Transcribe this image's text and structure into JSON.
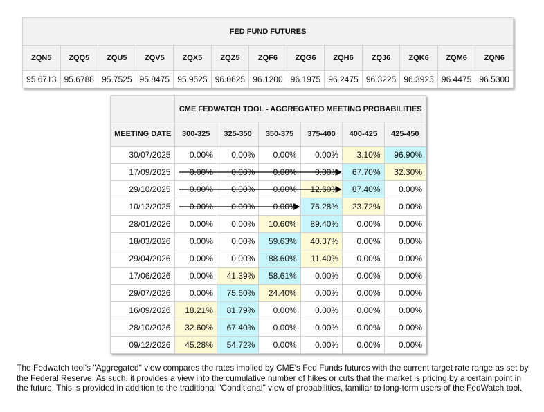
{
  "futures": {
    "title": "FED FUND FUTURES",
    "contracts": [
      {
        "code": "ZQN5",
        "price": "95.6713"
      },
      {
        "code": "ZQQ5",
        "price": "95.6788"
      },
      {
        "code": "ZQU5",
        "price": "95.7525"
      },
      {
        "code": "ZQV5",
        "price": "95.8475"
      },
      {
        "code": "ZQX5",
        "price": "95.9525"
      },
      {
        "code": "ZQZ5",
        "price": "96.0625"
      },
      {
        "code": "ZQF6",
        "price": "96.1200"
      },
      {
        "code": "ZQG6",
        "price": "96.1975"
      },
      {
        "code": "ZQH6",
        "price": "96.2475"
      },
      {
        "code": "ZQJ6",
        "price": "96.3225"
      },
      {
        "code": "ZQK6",
        "price": "96.3925"
      },
      {
        "code": "ZQM6",
        "price": "96.4475"
      },
      {
        "code": "ZQN6",
        "price": "96.5300"
      }
    ]
  },
  "fedwatch": {
    "title": "CME FEDWATCH TOOL - AGGREGATED MEETING PROBABILITIES",
    "date_header": "MEETING DATE",
    "rate_headers": [
      "300-325",
      "325-350",
      "350-375",
      "375-400",
      "400-425",
      "425-450"
    ],
    "colors": {
      "blue": "#c6f6fb",
      "yellow": "#fdfbd6"
    },
    "rows": [
      {
        "date": "30/07/2025",
        "values": [
          "0.00%",
          "0.00%",
          "0.00%",
          "0.00%",
          "3.10%",
          "96.90%"
        ],
        "hl": [
          "",
          "",
          "",
          "",
          "yellow",
          "blue"
        ],
        "arrow_to": null
      },
      {
        "date": "17/09/2025",
        "values": [
          "0.00%",
          "0.00%",
          "0.00%",
          "0.00%",
          "67.70%",
          "32.30%"
        ],
        "hl": [
          "",
          "",
          "",
          "",
          "blue",
          "yellow"
        ],
        "arrow_to": 4
      },
      {
        "date": "29/10/2025",
        "values": [
          "0.00%",
          "0.00%",
          "0.00%",
          "12.60%",
          "87.40%",
          "0.00%"
        ],
        "hl": [
          "",
          "",
          "",
          "yellow",
          "blue",
          ""
        ],
        "arrow_to": 4
      },
      {
        "date": "10/12/2025",
        "values": [
          "0.00%",
          "0.00%",
          "0.00%",
          "76.28%",
          "23.72%",
          "0.00%"
        ],
        "hl": [
          "",
          "",
          "",
          "blue",
          "yellow",
          ""
        ],
        "arrow_to": 3
      },
      {
        "date": "28/01/2026",
        "values": [
          "0.00%",
          "0.00%",
          "10.60%",
          "89.40%",
          "0.00%",
          "0.00%"
        ],
        "hl": [
          "",
          "",
          "yellow",
          "blue",
          "",
          ""
        ],
        "arrow_to": null
      },
      {
        "date": "18/03/2026",
        "values": [
          "0.00%",
          "0.00%",
          "59.63%",
          "40.37%",
          "0.00%",
          "0.00%"
        ],
        "hl": [
          "",
          "",
          "blue",
          "yellow",
          "",
          ""
        ],
        "arrow_to": null
      },
      {
        "date": "29/04/2026",
        "values": [
          "0.00%",
          "0.00%",
          "88.60%",
          "11.40%",
          "0.00%",
          "0.00%"
        ],
        "hl": [
          "",
          "",
          "blue",
          "yellow",
          "",
          ""
        ],
        "arrow_to": null
      },
      {
        "date": "17/06/2026",
        "values": [
          "0.00%",
          "41.39%",
          "58.61%",
          "0.00%",
          "0.00%",
          "0.00%"
        ],
        "hl": [
          "",
          "yellow",
          "blue",
          "",
          "",
          ""
        ],
        "arrow_to": null
      },
      {
        "date": "29/07/2026",
        "values": [
          "0.00%",
          "75.60%",
          "24.40%",
          "0.00%",
          "0.00%",
          "0.00%"
        ],
        "hl": [
          "",
          "blue",
          "yellow",
          "",
          "",
          ""
        ],
        "arrow_to": null
      },
      {
        "date": "16/09/2026",
        "values": [
          "18.21%",
          "81.79%",
          "0.00%",
          "0.00%",
          "0.00%",
          "0.00%"
        ],
        "hl": [
          "yellow",
          "blue",
          "",
          "",
          "",
          ""
        ],
        "arrow_to": null
      },
      {
        "date": "28/10/2026",
        "values": [
          "32.60%",
          "67.40%",
          "0.00%",
          "0.00%",
          "0.00%",
          "0.00%"
        ],
        "hl": [
          "yellow",
          "blue",
          "",
          "",
          "",
          ""
        ],
        "arrow_to": null
      },
      {
        "date": "09/12/2026",
        "values": [
          "45.28%",
          "54.72%",
          "0.00%",
          "0.00%",
          "0.00%",
          "0.00%"
        ],
        "hl": [
          "yellow",
          "blue",
          "",
          "",
          "",
          ""
        ],
        "arrow_to": null
      }
    ]
  },
  "note": "The Fedwatch tool's \"Aggregated\" view compares the rates implied by CME's Fed Funds futures with the current target rate range as set by the Federal Reserve. As such, it provides a view into the cumulative number of hikes or cuts that the market is pricing by a certain point in the future. This is provided in addition to the traditional \"Conditional\" view of probabilities, familiar to long-term users of the FedWatch tool."
}
